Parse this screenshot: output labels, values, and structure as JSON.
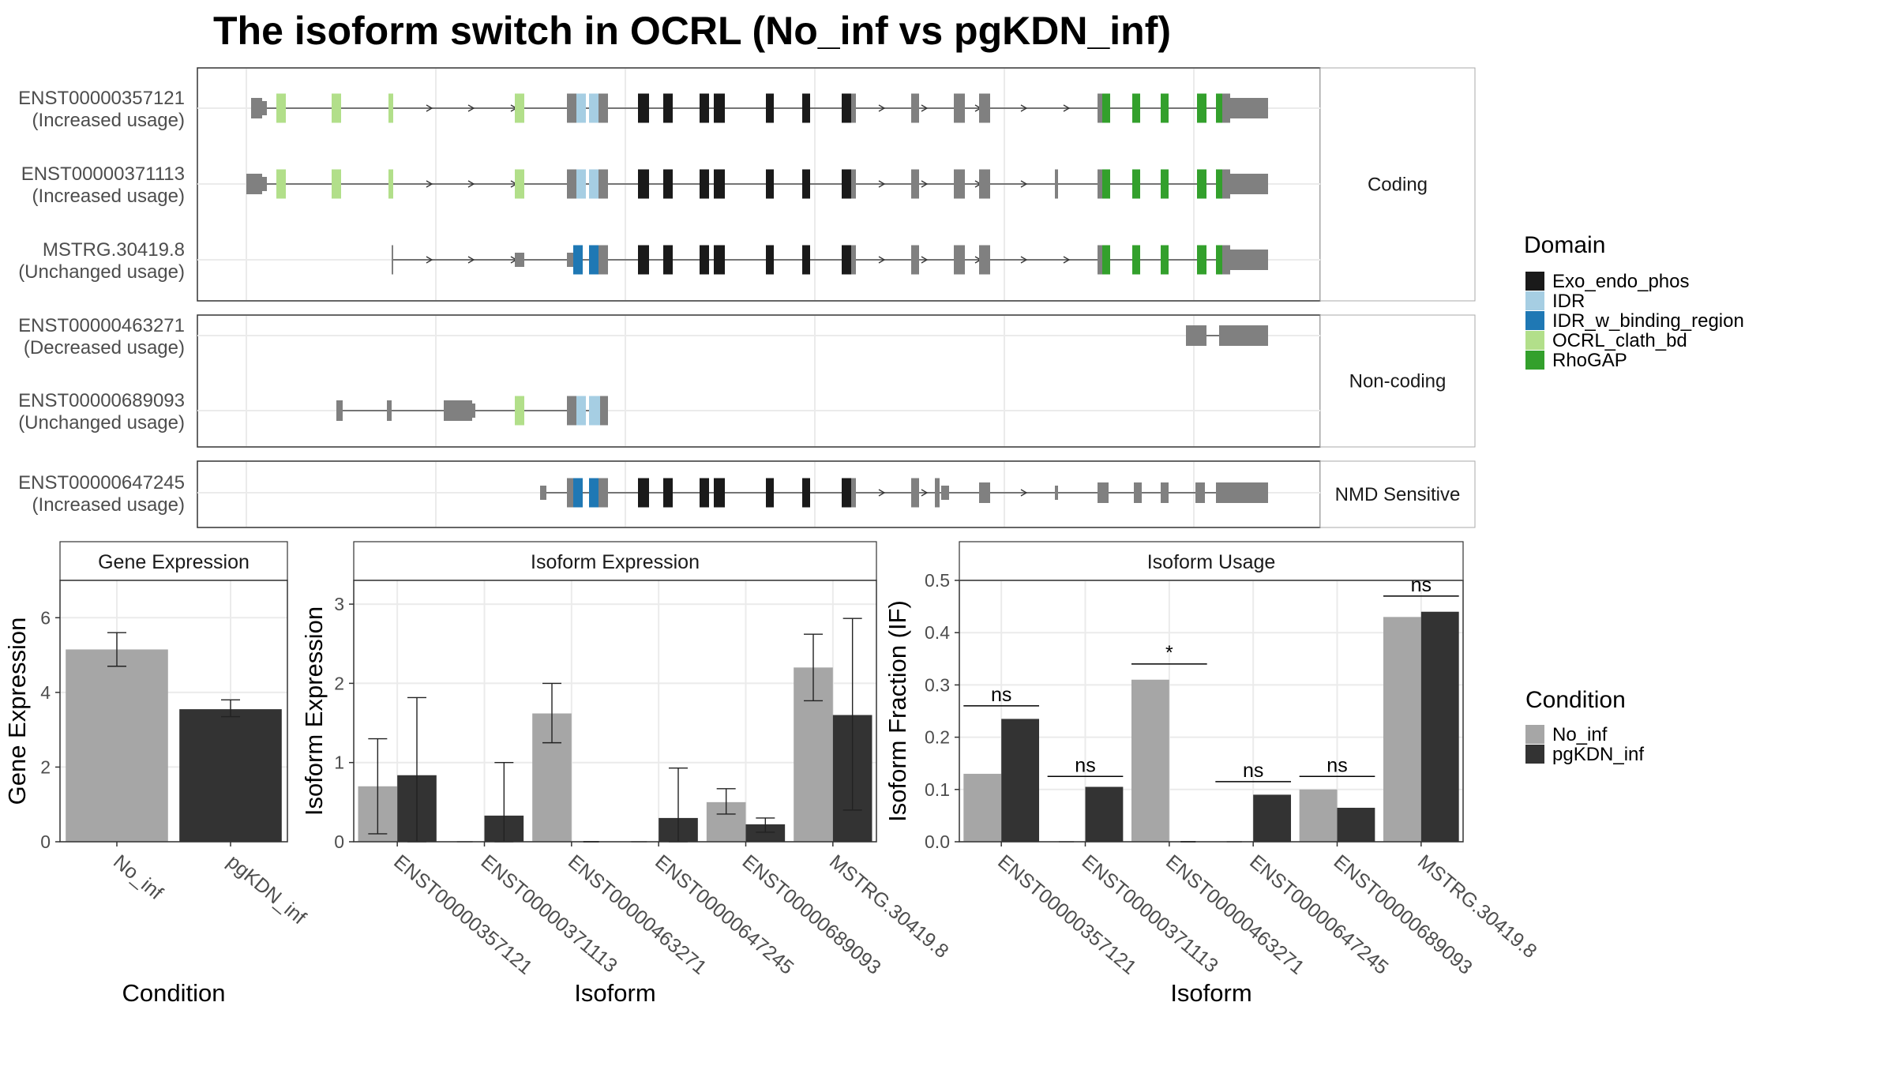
{
  "title": "The isoform switch in OCRL (No_inf vs pgKDN_inf)",
  "colors": {
    "Exo_endo_phos": "#1a1a1a",
    "IDR": "#a6cee3",
    "IDR_w_binding_region": "#1f78b4",
    "OCRL_clath_bd": "#b2df8a",
    "RhoGAP": "#33a02c",
    "exon": "#808080",
    "No_inf": "#a6a6a6",
    "pgKDN_inf": "#333333",
    "panel_border": "#333333",
    "strip_fill": "#ffffff",
    "grid": "#ebebeb"
  },
  "structure": {
    "legend": {
      "title": "Domain",
      "items": [
        "Exo_endo_phos",
        "IDR",
        "IDR_w_binding_region",
        "OCRL_clath_bd",
        "RhoGAP"
      ]
    },
    "groups": [
      {
        "label": "Coding",
        "isoforms": [
          {
            "id": "ENST00000357121",
            "usage": "(Increased usage)"
          },
          {
            "id": "ENST00000371113",
            "usage": "(Increased usage)"
          },
          {
            "id": "MSTRG.30419.8",
            "usage": "(Unchanged usage)"
          }
        ]
      },
      {
        "label": "Non-coding",
        "isoforms": [
          {
            "id": "ENST00000463271",
            "usage": "(Decreased usage)"
          },
          {
            "id": "ENST00000689093",
            "usage": "(Unchanged usage)"
          }
        ]
      },
      {
        "label": "NMD Sensitive",
        "isoforms": [
          {
            "id": "ENST00000647245",
            "usage": "(Increased usage)"
          }
        ]
      }
    ]
  },
  "condition_legend": {
    "title": "Condition",
    "items": [
      "No_inf",
      "pgKDN_inf"
    ]
  },
  "chart_data": [
    {
      "type": "bar",
      "title": "Gene Expression",
      "xlabel": "Condition",
      "ylabel": "Gene Expression",
      "ylim": [
        0,
        7
      ],
      "yticks": [
        0,
        2,
        4,
        6
      ],
      "categories": [
        "No_inf",
        "pgKDN_inf"
      ],
      "values": [
        5.15,
        3.55
      ],
      "errors": [
        [
          4.7,
          5.6
        ],
        [
          3.35,
          3.8
        ]
      ]
    },
    {
      "type": "bar",
      "title": "Isoform Expression",
      "xlabel": "Isoform",
      "ylabel": "Isoform Expression",
      "ylim": [
        0,
        3.3
      ],
      "yticks": [
        0,
        1,
        2,
        3
      ],
      "categories": [
        "ENST00000357121",
        "ENST00000371113",
        "ENST00000463271",
        "ENST00000647245",
        "ENST00000689093",
        "MSTRG.30419.8"
      ],
      "series": [
        {
          "name": "No_inf",
          "values": [
            0.7,
            0,
            1.62,
            0,
            0.5,
            2.2
          ],
          "errors": [
            [
              0.1,
              1.3
            ],
            null,
            [
              1.25,
              2.0
            ],
            null,
            [
              0.35,
              0.67
            ],
            [
              1.78,
              2.62
            ]
          ]
        },
        {
          "name": "pgKDN_inf",
          "values": [
            0.84,
            0.33,
            0,
            0.3,
            0.22,
            1.6
          ],
          "errors": [
            [
              0,
              1.82
            ],
            [
              0,
              1.0
            ],
            null,
            [
              0,
              0.93
            ],
            [
              0.12,
              0.3
            ],
            [
              0.4,
              2.82
            ]
          ]
        }
      ]
    },
    {
      "type": "bar",
      "title": "Isoform Usage",
      "xlabel": "Isoform",
      "ylabel": "Isoform Fraction (IF)",
      "ylim": [
        0,
        0.5
      ],
      "yticks": [
        0,
        0.1,
        0.2,
        0.3,
        0.4,
        0.5
      ],
      "ytick_labels": [
        "0.0",
        "0.1",
        "0.2",
        "0.3",
        "0.4",
        "0.5"
      ],
      "categories": [
        "ENST00000357121",
        "ENST00000371113",
        "ENST00000463271",
        "ENST00000647245",
        "ENST00000689093",
        "MSTRG.30419.8"
      ],
      "series": [
        {
          "name": "No_inf",
          "values": [
            0.13,
            0,
            0.31,
            0,
            0.1,
            0.43
          ]
        },
        {
          "name": "pgKDN_inf",
          "values": [
            0.235,
            0.105,
            0,
            0.09,
            0.065,
            0.44
          ]
        }
      ],
      "significance": [
        "ns",
        "ns",
        "*",
        "ns",
        "ns",
        "ns"
      ],
      "significance_y": [
        0.26,
        0.125,
        0.34,
        0.115,
        0.125,
        0.47
      ]
    }
  ]
}
